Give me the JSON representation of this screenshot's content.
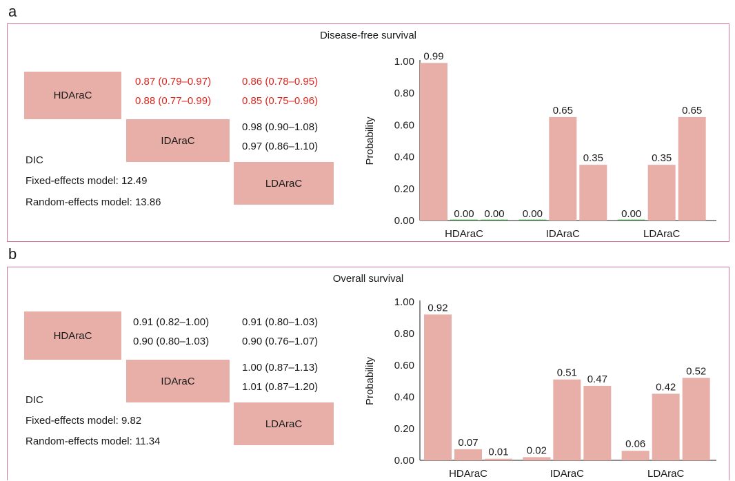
{
  "panels": [
    {
      "letter": "a",
      "title": "Disease-free survival",
      "boxes": [
        "HDAraC",
        "IDAraC",
        "LDAraC"
      ],
      "estimates": {
        "hd_id_1": "0.87 (0.79–0.97)",
        "hd_id_2": "0.88 (0.77–0.99)",
        "hd_ld_1": "0.86 (0.78–0.95)",
        "hd_ld_2": "0.85 (0.75–0.96)",
        "id_ld_1": "0.98 (0.90–1.08)",
        "id_ld_2": "0.97 (0.86–1.10)"
      },
      "significant": [
        "hd_id_1",
        "hd_id_2",
        "hd_ld_1",
        "hd_ld_2"
      ],
      "dic": {
        "heading": "DIC",
        "fixed": "Fixed-effects model: 12.49",
        "random": "Random-effects model: 13.86"
      }
    },
    {
      "letter": "b",
      "title": "Overall survival",
      "boxes": [
        "HDAraC",
        "IDAraC",
        "LDAraC"
      ],
      "estimates": {
        "hd_id_1": "0.91 (0.82–1.00)",
        "hd_id_2": "0.90 (0.80–1.03)",
        "hd_ld_1": "0.91 (0.80–1.03)",
        "hd_ld_2": "0.90 (0.76–1.07)",
        "id_ld_1": "1.00 (0.87–1.13)",
        "id_ld_2": "1.01 (0.87–1.20)"
      },
      "significant": [],
      "dic": {
        "heading": "DIC",
        "fixed": "Fixed-effects model: 9.82",
        "random": "Random-effects model: 11.34"
      }
    }
  ],
  "colors": {
    "bar": "#e7afa7",
    "box": "#e7afa7",
    "significant_text": "#e0241b",
    "panel_border": "#d47896",
    "zero_bar": "#2e7d32"
  },
  "chart_data": [
    {
      "type": "bar",
      "ylabel": "Probability",
      "xlabel": "",
      "categories": [
        "HDAraC",
        "IDAraC",
        "LDAraC"
      ],
      "series": [
        {
          "values": [
            0.99,
            0.0,
            0.0
          ]
        },
        {
          "values": [
            0.0,
            0.65,
            0.35
          ]
        },
        {
          "values": [
            0.0,
            0.35,
            0.65
          ]
        }
      ],
      "ylim": [
        0,
        1.0
      ],
      "yticks": [
        "0.00",
        "0.20",
        "0.40",
        "0.60",
        "0.80",
        "1.00"
      ],
      "legend": "none",
      "grid": false
    },
    {
      "type": "bar",
      "ylabel": "Probability",
      "xlabel": "",
      "categories": [
        "HDAraC",
        "IDAraC",
        "LDAraC"
      ],
      "series": [
        {
          "values": [
            0.92,
            0.07,
            0.01
          ]
        },
        {
          "values": [
            0.02,
            0.51,
            0.47
          ]
        },
        {
          "values": [
            0.06,
            0.42,
            0.52
          ]
        }
      ],
      "ylim": [
        0,
        1.0
      ],
      "yticks": [
        "0.00",
        "0.20",
        "0.40",
        "0.60",
        "0.80",
        "1.00"
      ],
      "legend": "none",
      "grid": false
    }
  ]
}
